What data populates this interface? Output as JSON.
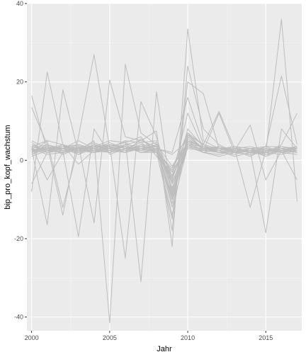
{
  "chart_data": {
    "type": "line",
    "title": "",
    "xlabel": "Jahr",
    "ylabel": "bip_pro_kopf_wachstum",
    "xlim": [
      1999.7,
      2017.3
    ],
    "ylim": [
      -43.5,
      40
    ],
    "x_ticks": [
      2000,
      2005,
      2010,
      2015
    ],
    "x_tick_labels": [
      "2000",
      "2005",
      "2010",
      "2015"
    ],
    "y_ticks": [
      -40,
      -20,
      0,
      20,
      40
    ],
    "y_tick_labels": [
      "-40",
      "-20",
      "0",
      "20",
      "40"
    ],
    "grid": true,
    "legend": "none",
    "line_color": "#bdbdbd",
    "panel_background": "#ebebeb",
    "x": [
      2000,
      2001,
      2002,
      2003,
      2004,
      2005,
      2006,
      2007,
      2008,
      2009,
      2010,
      2011,
      2012,
      2013,
      2014,
      2015,
      2016,
      2017
    ],
    "series": [
      {
        "values": [
          16.5,
          2.5,
          3.0,
          1.5,
          4.0,
          3.5,
          2.0,
          5.5,
          2.5,
          -4.0,
          5.0,
          2.0,
          1.5,
          2.5,
          1.0,
          3.0,
          2.0,
          3.5
        ]
      },
      {
        "values": [
          -8.0,
          22.5,
          4.0,
          -1.0,
          2.5,
          4.0,
          3.5,
          2.0,
          3.0,
          -7.5,
          8.0,
          3.5,
          2.0,
          1.5,
          2.5,
          1.0,
          3.5,
          2.5
        ]
      },
      {
        "values": [
          3.0,
          -16.5,
          18.0,
          2.0,
          3.5,
          5.0,
          4.5,
          6.0,
          1.0,
          -3.0,
          4.0,
          2.5,
          3.0,
          2.0,
          1.5,
          2.0,
          4.0,
          12.0
        ]
      },
      {
        "values": [
          2.0,
          4.0,
          -14.0,
          6.0,
          27.0,
          3.0,
          5.0,
          4.5,
          2.0,
          -9.0,
          6.0,
          3.0,
          2.5,
          1.0,
          2.0,
          2.5,
          3.0,
          2.0
        ]
      },
      {
        "values": [
          5.0,
          3.0,
          2.5,
          -19.5,
          8.0,
          1.5,
          3.0,
          2.5,
          4.0,
          -12.0,
          3.5,
          2.0,
          1.0,
          2.0,
          3.0,
          1.5,
          2.5,
          3.0
        ]
      },
      {
        "values": [
          4.0,
          2.0,
          3.5,
          4.0,
          -16.0,
          20.5,
          6.0,
          5.0,
          3.5,
          -5.0,
          7.0,
          4.0,
          3.0,
          2.5,
          2.0,
          3.0,
          2.0,
          2.5
        ]
      },
      {
        "values": [
          3.5,
          5.0,
          4.0,
          2.5,
          5.0,
          -41.5,
          24.5,
          7.0,
          4.0,
          -6.0,
          5.0,
          3.0,
          2.0,
          3.0,
          2.5,
          2.0,
          3.5,
          3.0
        ]
      },
      {
        "values": [
          1.0,
          2.5,
          3.0,
          5.0,
          3.0,
          4.0,
          -25.0,
          15.0,
          6.0,
          -8.0,
          4.5,
          2.5,
          3.5,
          2.0,
          1.5,
          2.5,
          3.0,
          2.0
        ]
      },
      {
        "values": [
          2.5,
          3.5,
          1.5,
          3.0,
          4.5,
          3.0,
          5.0,
          -31.0,
          17.5,
          -10.0,
          6.5,
          3.0,
          2.0,
          2.5,
          3.0,
          1.0,
          2.5,
          3.5
        ]
      },
      {
        "values": [
          3.0,
          1.5,
          2.0,
          3.5,
          2.0,
          2.5,
          4.0,
          5.0,
          7.5,
          -22.0,
          33.5,
          5.0,
          3.0,
          2.0,
          2.5,
          3.0,
          2.0,
          1.5
        ]
      },
      {
        "values": [
          2.0,
          3.0,
          4.0,
          1.5,
          3.0,
          2.0,
          3.0,
          4.5,
          5.0,
          -18.0,
          24.0,
          8.0,
          4.0,
          2.0,
          3.0,
          2.0,
          1.5,
          2.5
        ]
      },
      {
        "values": [
          4.5,
          2.0,
          3.0,
          2.5,
          3.5,
          4.0,
          3.5,
          3.0,
          2.0,
          -15.0,
          20.0,
          17.0,
          3.0,
          2.5,
          2.0,
          3.0,
          2.5,
          3.0
        ]
      },
      {
        "values": [
          3.0,
          4.0,
          2.5,
          3.0,
          2.0,
          3.5,
          4.5,
          2.5,
          3.0,
          2.0,
          16.0,
          4.0,
          12.5,
          3.0,
          2.0,
          1.5,
          3.0,
          2.0
        ]
      },
      {
        "values": [
          1.5,
          3.5,
          3.0,
          2.0,
          4.0,
          2.5,
          2.0,
          3.5,
          4.5,
          -4.0,
          12.0,
          3.0,
          2.0,
          2.5,
          9.0,
          -5.0,
          2.5,
          3.0
        ]
      },
      {
        "values": [
          3.5,
          2.5,
          2.0,
          4.0,
          3.0,
          3.0,
          2.5,
          4.0,
          2.0,
          -2.0,
          7.0,
          2.5,
          3.5,
          2.0,
          3.0,
          3.5,
          21.5,
          4.0
        ]
      },
      {
        "values": [
          2.5,
          3.0,
          3.5,
          2.5,
          2.5,
          2.0,
          3.0,
          3.0,
          3.5,
          -6.0,
          5.0,
          3.0,
          2.5,
          3.0,
          2.0,
          2.0,
          36.0,
          -10.5
        ]
      },
      {
        "values": [
          3.0,
          2.0,
          2.5,
          3.0,
          3.5,
          3.0,
          4.0,
          2.0,
          2.5,
          -3.0,
          4.0,
          3.5,
          3.0,
          2.5,
          2.5,
          -18.5,
          8.0,
          3.0
        ]
      },
      {
        "values": [
          13.5,
          4.0,
          3.0,
          2.0,
          3.0,
          4.5,
          3.0,
          3.5,
          3.0,
          1.5,
          5.0,
          2.0,
          3.0,
          3.5,
          2.0,
          2.5,
          3.0,
          2.5
        ]
      },
      {
        "values": [
          -6.0,
          2.0,
          4.0,
          3.0,
          2.5,
          3.5,
          2.5,
          4.0,
          3.5,
          -14.0,
          6.5,
          4.0,
          2.0,
          2.0,
          3.0,
          3.0,
          2.5,
          -5.0
        ]
      },
      {
        "values": [
          2.0,
          5.0,
          -12.0,
          3.5,
          2.0,
          3.0,
          3.5,
          2.5,
          4.0,
          -5.5,
          3.0,
          2.5,
          12.0,
          2.0,
          2.5,
          2.0,
          3.0,
          2.0
        ]
      },
      {
        "values": [
          3.5,
          -5.0,
          2.0,
          2.5,
          4.0,
          2.0,
          3.0,
          3.0,
          2.5,
          -8.5,
          5.5,
          3.0,
          3.5,
          2.5,
          2.0,
          3.5,
          2.0,
          3.0
        ]
      },
      {
        "values": [
          2.5,
          3.0,
          3.0,
          4.0,
          2.5,
          3.0,
          2.0,
          3.5,
          3.0,
          -10.0,
          4.5,
          2.5,
          2.0,
          3.0,
          -12.0,
          2.5,
          3.5,
          2.5
        ]
      },
      {
        "values": [
          4.0,
          2.5,
          3.5,
          3.0,
          3.0,
          2.5,
          3.5,
          2.0,
          2.0,
          -2.5,
          6.0,
          3.0,
          2.5,
          3.5,
          3.0,
          2.0,
          3.0,
          2.0
        ]
      },
      {
        "values": [
          1.5,
          3.0,
          2.0,
          3.5,
          3.5,
          3.0,
          2.5,
          3.0,
          3.5,
          -7.0,
          4.0,
          2.0,
          3.0,
          2.0,
          2.5,
          3.0,
          2.5,
          3.5
        ]
      },
      {
        "values": [
          3.0,
          2.0,
          3.0,
          2.5,
          2.0,
          4.0,
          3.0,
          2.5,
          3.0,
          -4.5,
          5.0,
          3.5,
          2.5,
          3.0,
          3.5,
          2.5,
          2.0,
          3.0
        ]
      },
      {
        "values": [
          2.0,
          3.5,
          2.5,
          3.0,
          3.0,
          2.0,
          4.0,
          3.5,
          2.5,
          -9.5,
          3.5,
          3.0,
          2.0,
          2.5,
          2.0,
          3.5,
          3.5,
          2.5
        ]
      },
      {
        "values": [
          3.5,
          2.5,
          3.5,
          2.0,
          3.5,
          3.5,
          2.0,
          3.0,
          4.0,
          -1.5,
          4.5,
          2.5,
          3.5,
          2.0,
          3.0,
          2.0,
          3.0,
          3.5
        ]
      },
      {
        "values": [
          2.5,
          3.0,
          2.0,
          3.0,
          2.5,
          3.0,
          3.5,
          2.0,
          3.0,
          -11.0,
          6.0,
          3.0,
          3.0,
          3.0,
          2.5,
          3.0,
          2.5,
          2.0
        ]
      }
    ]
  }
}
